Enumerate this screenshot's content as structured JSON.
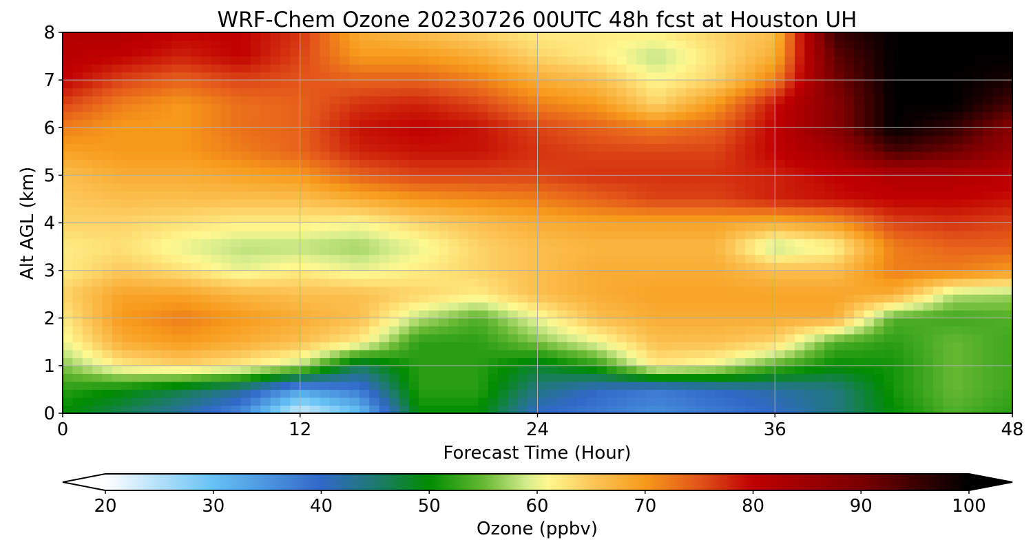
{
  "chart_data": {
    "type": "heatmap",
    "title": "WRF-Chem Ozone  20230726 00UTC 48h fcst at Houston UH",
    "xlabel": "Forecast Time (Hour)",
    "ylabel": "Alt AGL (km)",
    "xlim": [
      0,
      48
    ],
    "ylim": [
      0,
      8
    ],
    "xticks": [
      "0",
      "12",
      "24",
      "36",
      "48"
    ],
    "yticks": [
      "0",
      "1",
      "2",
      "3",
      "4",
      "5",
      "6",
      "7",
      "8"
    ],
    "grid": true,
    "x": [
      0,
      3,
      6,
      9,
      12,
      15,
      18,
      21,
      24,
      27,
      30,
      33,
      36,
      39,
      42,
      45,
      48
    ],
    "y": [
      0,
      0.5,
      1,
      1.5,
      2,
      2.5,
      3,
      3.5,
      4,
      4.5,
      5,
      5.5,
      6,
      6.5,
      7,
      7.5,
      8
    ],
    "z": [
      [
        50,
        46,
        42,
        36,
        22,
        30,
        50,
        50,
        40,
        38,
        36,
        38,
        40,
        44,
        50,
        54,
        52
      ],
      [
        52,
        50,
        47,
        43,
        34,
        38,
        52,
        52,
        44,
        40,
        38,
        40,
        42,
        44,
        51,
        55,
        53
      ],
      [
        56,
        62,
        64,
        62,
        58,
        46,
        52,
        52,
        48,
        52,
        62,
        60,
        54,
        50,
        51,
        55,
        53
      ],
      [
        60,
        68,
        70,
        68,
        66,
        62,
        52,
        52,
        56,
        60,
        66,
        66,
        64,
        54,
        52,
        55,
        53
      ],
      [
        62,
        70,
        72,
        70,
        68,
        66,
        58,
        54,
        60,
        66,
        68,
        68,
        68,
        68,
        54,
        53,
        54
      ],
      [
        64,
        69,
        69,
        67,
        66,
        66,
        64,
        62,
        66,
        68,
        69,
        69,
        69,
        69,
        68,
        58,
        57
      ],
      [
        62,
        65,
        63,
        60,
        62,
        60,
        62,
        64,
        66,
        68,
        68,
        68,
        66,
        66,
        72,
        72,
        70
      ],
      [
        62,
        63,
        60,
        58,
        58,
        57,
        60,
        64,
        66,
        67,
        67,
        67,
        58,
        61,
        72,
        74,
        74
      ],
      [
        64,
        64,
        63,
        62,
        62,
        61,
        64,
        66,
        68,
        69,
        69,
        69,
        68,
        70,
        76,
        77,
        76
      ],
      [
        65,
        66,
        66,
        66,
        66,
        68,
        70,
        71,
        72,
        74,
        76,
        76,
        78,
        79,
        80,
        80,
        79
      ],
      [
        66,
        68,
        68,
        69,
        70,
        74,
        76,
        76,
        76,
        77,
        77,
        77,
        78,
        80,
        82,
        82,
        81
      ],
      [
        69,
        70,
        70,
        72,
        74,
        78,
        79,
        79,
        77,
        76,
        76,
        76,
        80,
        84,
        94,
        91,
        85
      ],
      [
        72,
        70,
        70,
        73,
        74,
        79,
        80,
        79,
        76,
        74,
        72,
        74,
        80,
        88,
        100,
        96,
        88
      ],
      [
        76,
        72,
        70,
        73,
        74,
        77,
        78,
        76,
        72,
        70,
        64,
        70,
        79,
        88,
        100,
        100,
        94
      ],
      [
        80,
        76,
        74,
        76,
        75,
        74,
        74,
        72,
        68,
        66,
        61,
        64,
        72,
        90,
        100,
        100,
        98
      ],
      [
        81,
        80,
        78,
        80,
        76,
        70,
        70,
        68,
        64,
        62,
        58,
        63,
        68,
        92,
        100,
        100,
        100
      ],
      [
        82,
        82,
        80,
        80,
        77,
        68,
        66,
        64,
        62,
        62,
        62,
        64,
        66,
        95,
        100,
        100,
        100
      ]
    ],
    "colorbar": {
      "label": "Ozone  (ppbv)",
      "min": 20,
      "max": 100,
      "ticks": [
        "20",
        "30",
        "40",
        "50",
        "60",
        "70",
        "80",
        "90",
        "100"
      ],
      "extend": "both",
      "palette": [
        [
          20,
          "#ffffff"
        ],
        [
          30,
          "#66c2f5"
        ],
        [
          40,
          "#3168c8"
        ],
        [
          45,
          "#1e7a70"
        ],
        [
          50,
          "#008c00"
        ],
        [
          55,
          "#66b833"
        ],
        [
          59,
          "#d4ec8c"
        ],
        [
          61,
          "#fff890"
        ],
        [
          65,
          "#fcc85a"
        ],
        [
          70,
          "#f79a1a"
        ],
        [
          75,
          "#e2541a"
        ],
        [
          80,
          "#c00000"
        ],
        [
          90,
          "#7a0000"
        ],
        [
          100,
          "#000000"
        ]
      ]
    }
  }
}
